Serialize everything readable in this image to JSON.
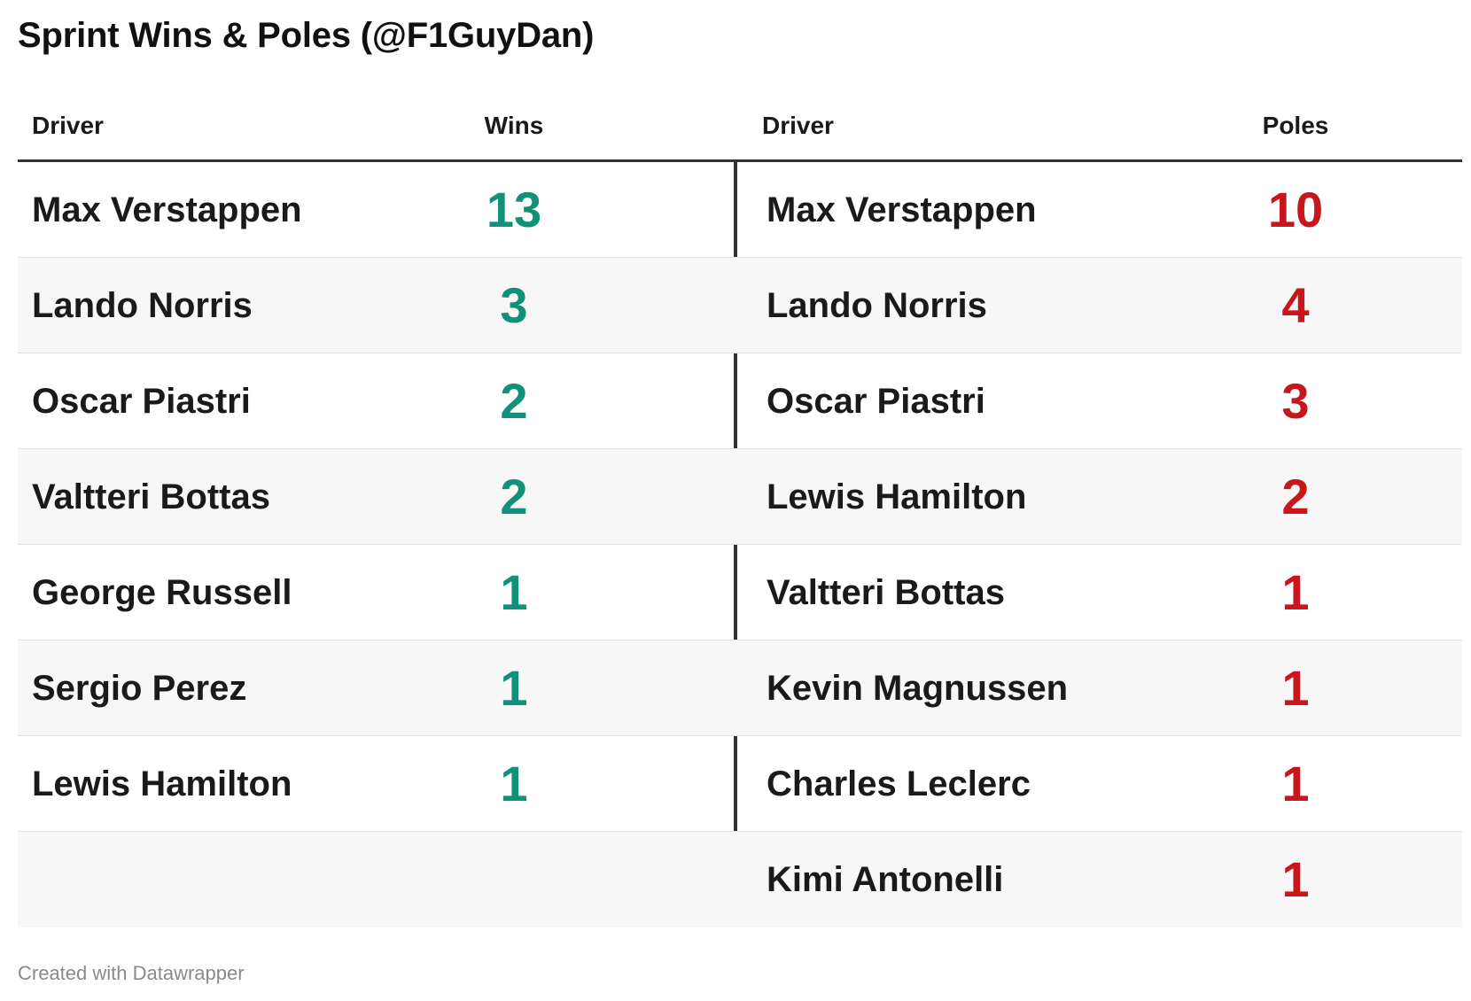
{
  "title": "Sprint Wins & Poles (@F1GuyDan)",
  "footer": "Created with Datawrapper",
  "colors": {
    "wins": "#12917a",
    "poles": "#c8161d"
  },
  "headers": {
    "driver_left": "Driver",
    "wins": "Wins",
    "driver_right": "Driver",
    "poles": "Poles"
  },
  "chart_data": {
    "type": "table",
    "title": "Sprint Wins & Poles (@F1GuyDan)",
    "columns": [
      "Driver",
      "Wins",
      "Driver",
      "Poles"
    ],
    "wins": [
      {
        "driver": "Max Verstappen",
        "value": 13
      },
      {
        "driver": "Lando Norris",
        "value": 3
      },
      {
        "driver": "Oscar Piastri",
        "value": 2
      },
      {
        "driver": "Valtteri Bottas",
        "value": 2
      },
      {
        "driver": "George Russell",
        "value": 1
      },
      {
        "driver": "Sergio Perez",
        "value": 1
      },
      {
        "driver": "Lewis Hamilton",
        "value": 1
      }
    ],
    "poles": [
      {
        "driver": "Max Verstappen",
        "value": 10
      },
      {
        "driver": "Lando Norris",
        "value": 4
      },
      {
        "driver": "Oscar Piastri",
        "value": 3
      },
      {
        "driver": "Lewis Hamilton",
        "value": 2
      },
      {
        "driver": "Valtteri Bottas",
        "value": 1
      },
      {
        "driver": "Kevin Magnussen",
        "value": 1
      },
      {
        "driver": "Charles Leclerc",
        "value": 1
      },
      {
        "driver": "Kimi Antonelli",
        "value": 1
      }
    ]
  }
}
